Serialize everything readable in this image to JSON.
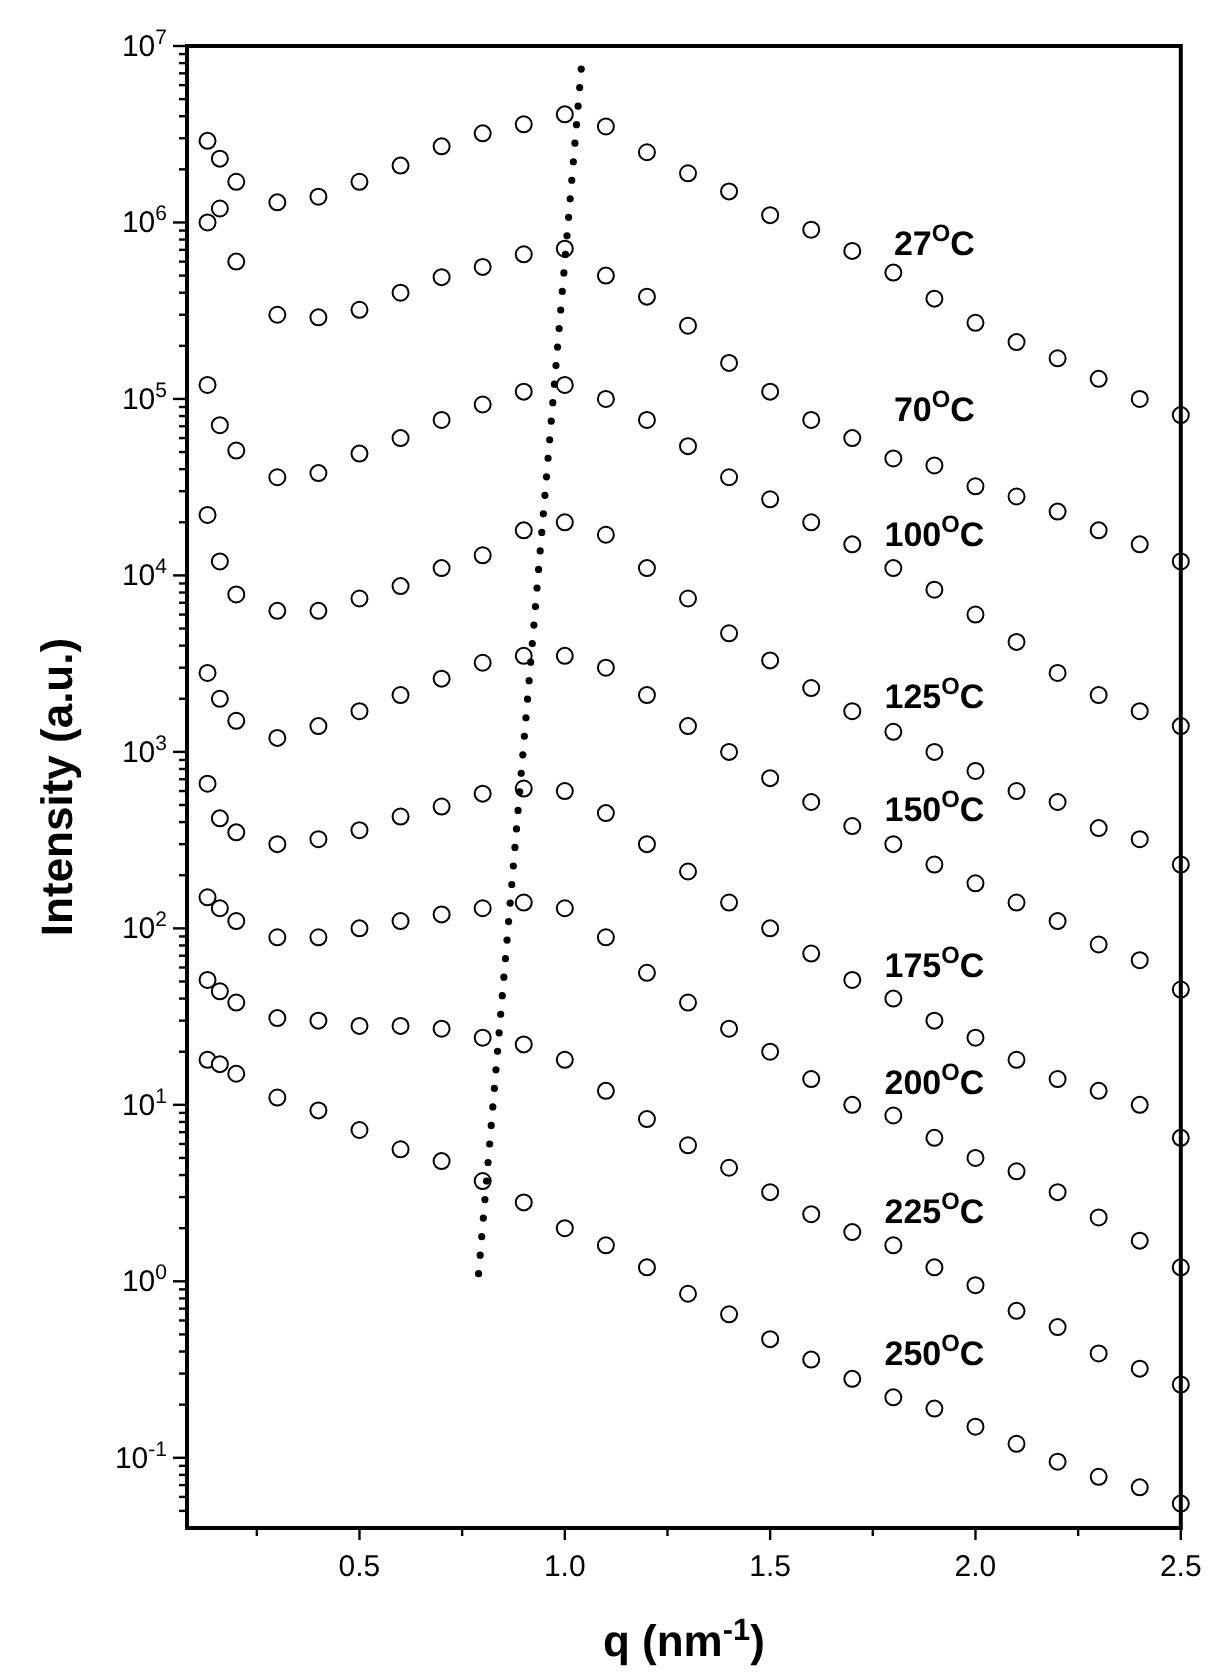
{
  "chart_data": {
    "type": "scatter",
    "xlabel": "q (nm$^{-1}$)",
    "ylabel": "Intensity (a.u.)",
    "log": "y",
    "grid": false,
    "marker": "circle",
    "x": [
      0.13,
      0.16,
      0.2,
      0.3,
      0.4,
      0.5,
      0.6,
      0.7,
      0.8,
      0.9,
      1.0,
      1.1,
      1.2,
      1.3,
      1.4,
      1.5,
      1.6,
      1.7,
      1.8,
      1.9,
      2.0,
      2.1,
      2.2,
      2.3,
      2.4,
      2.5
    ],
    "xlim": [
      0.08,
      2.5
    ],
    "xticks": [
      {
        "value": 0.25,
        "label": null
      },
      {
        "value": 0.5,
        "label": "0.5"
      },
      {
        "value": 0.75,
        "label": null
      },
      {
        "value": 1,
        "label": "1.0"
      },
      {
        "value": 1.25,
        "label": null
      },
      {
        "value": 1.5,
        "label": "1.5"
      },
      {
        "value": 1.75,
        "label": null
      },
      {
        "value": 2,
        "label": "2.0"
      },
      {
        "value": 2.25,
        "label": null
      },
      {
        "value": 2.5,
        "label": "2.5"
      }
    ],
    "ylim": [
      0.04,
      10000000
    ],
    "yticks": [
      {
        "value": 0.05,
        "label": null
      },
      {
        "value": 0.06,
        "label": null
      },
      {
        "value": 0.07,
        "label": null
      },
      {
        "value": 0.08,
        "label": null
      },
      {
        "value": 0.09,
        "label": null
      },
      {
        "value": 0.1,
        "label": "10$^{-1}$"
      },
      {
        "value": 0.2,
        "label": null
      },
      {
        "value": 0.3,
        "label": null
      },
      {
        "value": 0.4,
        "label": null
      },
      {
        "value": 0.5,
        "label": null
      },
      {
        "value": 0.6,
        "label": null
      },
      {
        "value": 0.7,
        "label": null
      },
      {
        "value": 0.8,
        "label": null
      },
      {
        "value": 0.9,
        "label": null
      },
      {
        "value": 1,
        "label": "10$^{0}$"
      },
      {
        "value": 2,
        "label": null
      },
      {
        "value": 3,
        "label": null
      },
      {
        "value": 4,
        "label": null
      },
      {
        "value": 5,
        "label": null
      },
      {
        "value": 6,
        "label": null
      },
      {
        "value": 7,
        "label": null
      },
      {
        "value": 8,
        "label": null
      },
      {
        "value": 9,
        "label": null
      },
      {
        "value": 10,
        "label": "10$^{1}$"
      },
      {
        "value": 20,
        "label": null
      },
      {
        "value": 30,
        "label": null
      },
      {
        "value": 40,
        "label": null
      },
      {
        "value": 50,
        "label": null
      },
      {
        "value": 60,
        "label": null
      },
      {
        "value": 70,
        "label": null
      },
      {
        "value": 80,
        "label": null
      },
      {
        "value": 90,
        "label": null
      },
      {
        "value": 100,
        "label": "10$^{2}$"
      },
      {
        "value": 200,
        "label": null
      },
      {
        "value": 300,
        "label": null
      },
      {
        "value": 400,
        "label": null
      },
      {
        "value": 500,
        "label": null
      },
      {
        "value": 600,
        "label": null
      },
      {
        "value": 700,
        "label": null
      },
      {
        "value": 800,
        "label": null
      },
      {
        "value": 900,
        "label": null
      },
      {
        "value": 1000,
        "label": "10$^{3}$"
      },
      {
        "value": 2000,
        "label": null
      },
      {
        "value": 3000,
        "label": null
      },
      {
        "value": 4000,
        "label": null
      },
      {
        "value": 5000,
        "label": null
      },
      {
        "value": 6000,
        "label": null
      },
      {
        "value": 7000,
        "label": null
      },
      {
        "value": 8000,
        "label": null
      },
      {
        "value": 9000,
        "label": null
      },
      {
        "value": 10000,
        "label": "10$^{4}$"
      },
      {
        "value": 20000,
        "label": null
      },
      {
        "value": 30000,
        "label": null
      },
      {
        "value": 40000,
        "label": null
      },
      {
        "value": 50000,
        "label": null
      },
      {
        "value": 60000,
        "label": null
      },
      {
        "value": 70000,
        "label": null
      },
      {
        "value": 80000,
        "label": null
      },
      {
        "value": 90000,
        "label": null
      },
      {
        "value": 100000,
        "label": "10$^{5}$"
      },
      {
        "value": 200000,
        "label": null
      },
      {
        "value": 300000,
        "label": null
      },
      {
        "value": 400000,
        "label": null
      },
      {
        "value": 500000,
        "label": null
      },
      {
        "value": 600000,
        "label": null
      },
      {
        "value": 700000,
        "label": null
      },
      {
        "value": 800000,
        "label": null
      },
      {
        "value": 900000,
        "label": null
      },
      {
        "value": 1000000,
        "label": "10$^{6}$"
      },
      {
        "value": 2000000,
        "label": null
      },
      {
        "value": 3000000,
        "label": null
      },
      {
        "value": 4000000,
        "label": null
      },
      {
        "value": 5000000,
        "label": null
      },
      {
        "value": 6000000,
        "label": null
      },
      {
        "value": 7000000,
        "label": null
      },
      {
        "value": 8000000,
        "label": null
      },
      {
        "value": 9000000,
        "label": null
      },
      {
        "value": 10000000,
        "label": "10$^{7}$"
      }
    ],
    "series": [
      {
        "name": "27$^{O}$C",
        "color": "#000000",
        "values": [
          2900000,
          2300000,
          1700000,
          1300000,
          1400000,
          1700000,
          2100000,
          2700000,
          3200000,
          3600000,
          4100000,
          3500000,
          2500000,
          1900000,
          1500000,
          1100000,
          910000,
          690000,
          520000,
          370000,
          270000,
          210000,
          170000,
          130000,
          100000,
          81000
        ]
      },
      {
        "name": "70$^{O}$C",
        "color": "#000000",
        "values": [
          1000000,
          1200000,
          600000,
          300000,
          290000,
          320000,
          400000,
          490000,
          560000,
          660000,
          710000,
          500000,
          380000,
          260000,
          160000,
          110000,
          76000,
          60000,
          46000,
          42000,
          32000,
          28000,
          23000,
          18000,
          15000,
          12000
        ]
      },
      {
        "name": "100$^{O}$C",
        "color": "#000000",
        "values": [
          120000,
          71000,
          51000,
          36000,
          38000,
          49000,
          60000,
          76000,
          93000,
          110000,
          120000,
          100000,
          76000,
          54000,
          36000,
          27000,
          20000,
          15000,
          11000,
          8300,
          6000,
          4200,
          2800,
          2100,
          1700,
          1400
        ]
      },
      {
        "name": "125$^{O}$C",
        "color": "#000000",
        "values": [
          22000,
          12000,
          7800,
          6300,
          6300,
          7400,
          8700,
          11000,
          13000,
          18000,
          20000,
          17000,
          11000,
          7400,
          4700,
          3300,
          2300,
          1700,
          1300,
          1000,
          780,
          600,
          520,
          370,
          320,
          230
        ]
      },
      {
        "name": "150$^{O}$C",
        "color": "#000000",
        "values": [
          2800,
          2000,
          1500,
          1200,
          1400,
          1700,
          2100,
          2600,
          3200,
          3500,
          3500,
          3000,
          2100,
          1400,
          1000,
          710,
          520,
          380,
          300,
          230,
          180,
          140,
          110,
          81,
          66,
          45
        ]
      },
      {
        "name": "175$^{O}$C",
        "color": "#000000",
        "values": [
          660,
          420,
          350,
          300,
          320,
          360,
          430,
          490,
          580,
          620,
          600,
          450,
          300,
          210,
          140,
          100,
          72,
          51,
          40,
          30,
          24,
          18,
          14,
          12,
          10,
          6.5
        ]
      },
      {
        "name": "200$^{O}$C",
        "color": "#000000",
        "values": [
          150,
          130,
          110,
          89,
          89,
          100,
          110,
          120,
          130,
          140,
          130,
          89,
          56,
          38,
          27,
          20,
          14,
          10,
          8.7,
          6.5,
          5.0,
          4.2,
          3.2,
          2.3,
          1.7,
          1.2
        ]
      },
      {
        "name": "225$^{O}$C",
        "color": "#000000",
        "values": [
          51,
          44,
          38,
          31,
          30,
          28,
          28,
          27,
          24,
          22,
          18,
          12,
          8.3,
          5.9,
          4.4,
          3.2,
          2.4,
          1.9,
          1.6,
          1.2,
          0.95,
          0.68,
          0.55,
          0.39,
          0.32,
          0.26
        ]
      },
      {
        "name": "250$^{O}$C",
        "color": "#000000",
        "values": [
          18,
          17,
          15,
          11,
          9.3,
          7.2,
          5.6,
          4.8,
          3.7,
          2.8,
          2.0,
          1.6,
          1.2,
          0.85,
          0.65,
          0.47,
          0.36,
          0.28,
          0.22,
          0.19,
          0.15,
          0.12,
          0.095,
          0.078,
          0.068,
          0.055
        ]
      },
      {
        "type": "line",
        "color": "#000000",
        "marker": "none",
        "line_style": "dotted",
        "x": [
          1.04,
          0.79
        ],
        "values": [
          7400000,
          1.1
        ]
      }
    ]
  }
}
